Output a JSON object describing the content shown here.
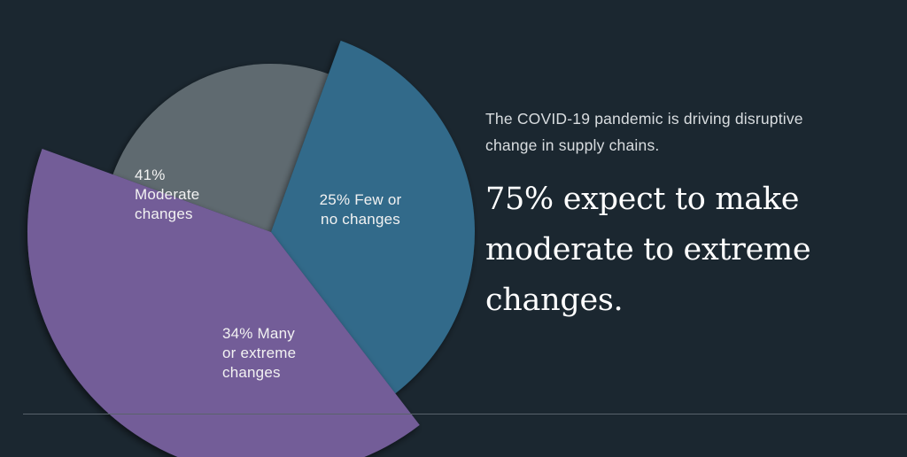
{
  "colors": {
    "background": "#1b2730",
    "text": "#ffffff",
    "rule": "#59636b"
  },
  "intro_text": "The COVID-19 pandemic is driving disruptive change in supply chains.",
  "headline": "75% expect to make moderate to extreme changes.",
  "chart_data": {
    "type": "pie",
    "title": "",
    "legend": "none",
    "slices": [
      {
        "name": "Few or no changes",
        "value": 25,
        "label_lines": [
          "25% Few or",
          "no changes"
        ],
        "color": "#5e6a6f"
      },
      {
        "name": "Many or extreme changes",
        "value": 34,
        "label_lines": [
          "34% Many",
          "or extreme",
          "changes"
        ],
        "color": "#306a8a"
      },
      {
        "name": "Moderate changes",
        "value": 41,
        "label_lines": [
          "41%",
          "Moderate",
          "changes"
        ],
        "color": "#735d98"
      }
    ]
  }
}
